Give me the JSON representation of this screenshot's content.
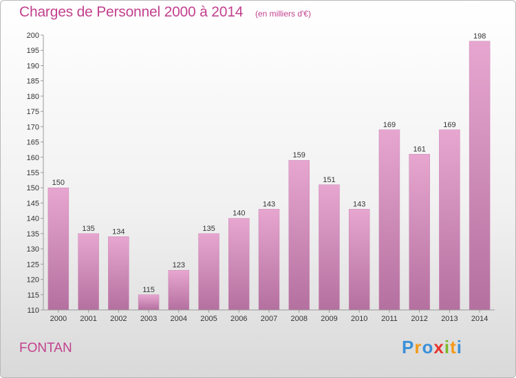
{
  "header": {
    "title": "Charges de Personnel 2000 à 2014",
    "subtitle": "(en milliers d'€)"
  },
  "footer": {
    "place": "FONTAN",
    "logo_letters": [
      "P",
      "r",
      "o",
      "x",
      "i",
      "t",
      "i"
    ],
    "logo_colors": [
      "#3a8fd8",
      "#f29a18",
      "#3a8fd8",
      "#e6332a",
      "#7ab829",
      "#f29a18",
      "#3a8fd8"
    ]
  },
  "colors": {
    "bar_top": "#e7a6d0",
    "bar_bottom": "#b4709f",
    "text": "#333333",
    "accent": "#c2408d"
  },
  "chart_data": {
    "type": "bar",
    "title": "Charges de Personnel 2000 à 2014",
    "subtitle": "(en milliers d'€)",
    "categories": [
      "2000",
      "2001",
      "2002",
      "2003",
      "2004",
      "2005",
      "2006",
      "2007",
      "2008",
      "2009",
      "2010",
      "2011",
      "2012",
      "2013",
      "2014"
    ],
    "values": [
      150,
      135,
      134,
      115,
      123,
      135,
      140,
      143,
      159,
      151,
      143,
      169,
      161,
      169,
      198
    ],
    "ylim": [
      110,
      200
    ],
    "yticks": [
      110,
      115,
      120,
      125,
      130,
      135,
      140,
      145,
      150,
      155,
      160,
      165,
      170,
      175,
      180,
      185,
      190,
      195,
      200
    ],
    "grid": false,
    "legend": "none"
  }
}
